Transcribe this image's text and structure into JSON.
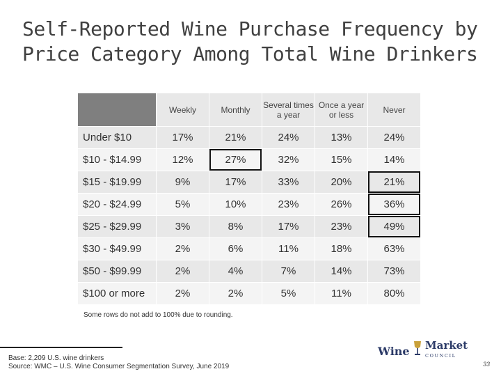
{
  "title": "Self-Reported Wine Purchase Frequency by Price Category Among Total Wine Drinkers",
  "table": {
    "columns": [
      "Weekly",
      "Monthly",
      "Several times a year",
      "Once a year or less",
      "Never"
    ],
    "rows": [
      {
        "label": "Under $10",
        "values": [
          "17%",
          "21%",
          "24%",
          "13%",
          "24%"
        ]
      },
      {
        "label": "$10 - $14.99",
        "values": [
          "12%",
          "27%",
          "32%",
          "15%",
          "14%"
        ]
      },
      {
        "label": "$15 - $19.99",
        "values": [
          "9%",
          "17%",
          "33%",
          "20%",
          "21%"
        ]
      },
      {
        "label": "$20 - $24.99",
        "values": [
          "5%",
          "10%",
          "23%",
          "26%",
          "36%"
        ]
      },
      {
        "label": "$25 - $29.99",
        "values": [
          "3%",
          "8%",
          "17%",
          "23%",
          "49%"
        ]
      },
      {
        "label": "$30 - $49.99",
        "values": [
          "2%",
          "6%",
          "11%",
          "18%",
          "63%"
        ]
      },
      {
        "label": "$50 - $99.99",
        "values": [
          "2%",
          "4%",
          "7%",
          "14%",
          "73%"
        ]
      },
      {
        "label": "$100 or more",
        "values": [
          "2%",
          "2%",
          "5%",
          "11%",
          "80%"
        ]
      }
    ]
  },
  "note": "Some rows do not add to 100% due to rounding.",
  "footer": {
    "base": "Base: 2,209 U.S. wine drinkers",
    "source": "Source: WMC – U.S. Wine Consumer Segmentation Survey, June 2019"
  },
  "logo": {
    "wine": "Wine",
    "market": "Market",
    "council": "COUNCIL"
  },
  "page_number": "33",
  "colors": {
    "header_corner": "#7f7f7f",
    "row_a": "#e8e8e8",
    "row_b": "#f4f4f4",
    "highlight": "#111111"
  }
}
